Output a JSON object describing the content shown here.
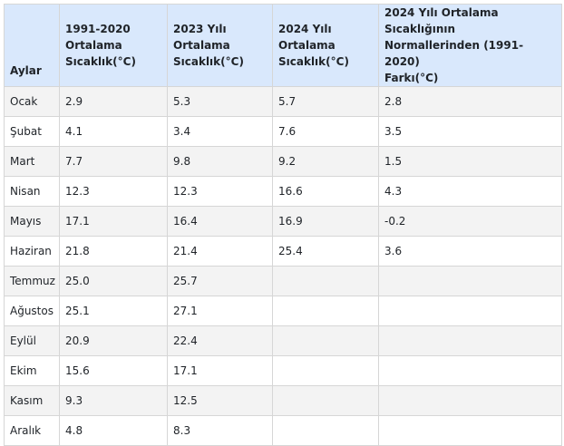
{
  "table": {
    "headers": [
      "Aylar",
      "1991-2020\nOrtalama\nSıcaklık(°C)",
      "2023 Yılı\nOrtalama\nSıcaklık(°C)",
      "2024 Yılı\nOrtalama\nSıcaklık(°C)",
      "2024 Yılı Ortalama Sıcaklığının\nNormallerinden (1991-2020)\nFarkı(°C)"
    ],
    "rows": [
      [
        "Ocak",
        "2.9",
        "5.3",
        "5.7",
        "2.8"
      ],
      [
        "Şubat",
        "4.1",
        "3.4",
        "7.6",
        "3.5"
      ],
      [
        "Mart",
        "7.7",
        "9.8",
        "9.2",
        "1.5"
      ],
      [
        "Nisan",
        "12.3",
        "12.3",
        "16.6",
        "4.3"
      ],
      [
        "Mayıs",
        "17.1",
        "16.4",
        "16.9",
        "-0.2"
      ],
      [
        "Haziran",
        "21.8",
        "21.4",
        "25.4",
        "3.6"
      ],
      [
        "Temmuz",
        "25.0",
        "25.7",
        "",
        ""
      ],
      [
        "Ağustos",
        "25.1",
        "27.1",
        "",
        ""
      ],
      [
        "Eylül",
        "20.9",
        "22.4",
        "",
        ""
      ],
      [
        "Ekim",
        "15.6",
        "17.1",
        "",
        ""
      ],
      [
        "Kasım",
        "9.3",
        "12.5",
        "",
        ""
      ],
      [
        "Aralık",
        "4.8",
        "8.3",
        "",
        ""
      ]
    ]
  }
}
